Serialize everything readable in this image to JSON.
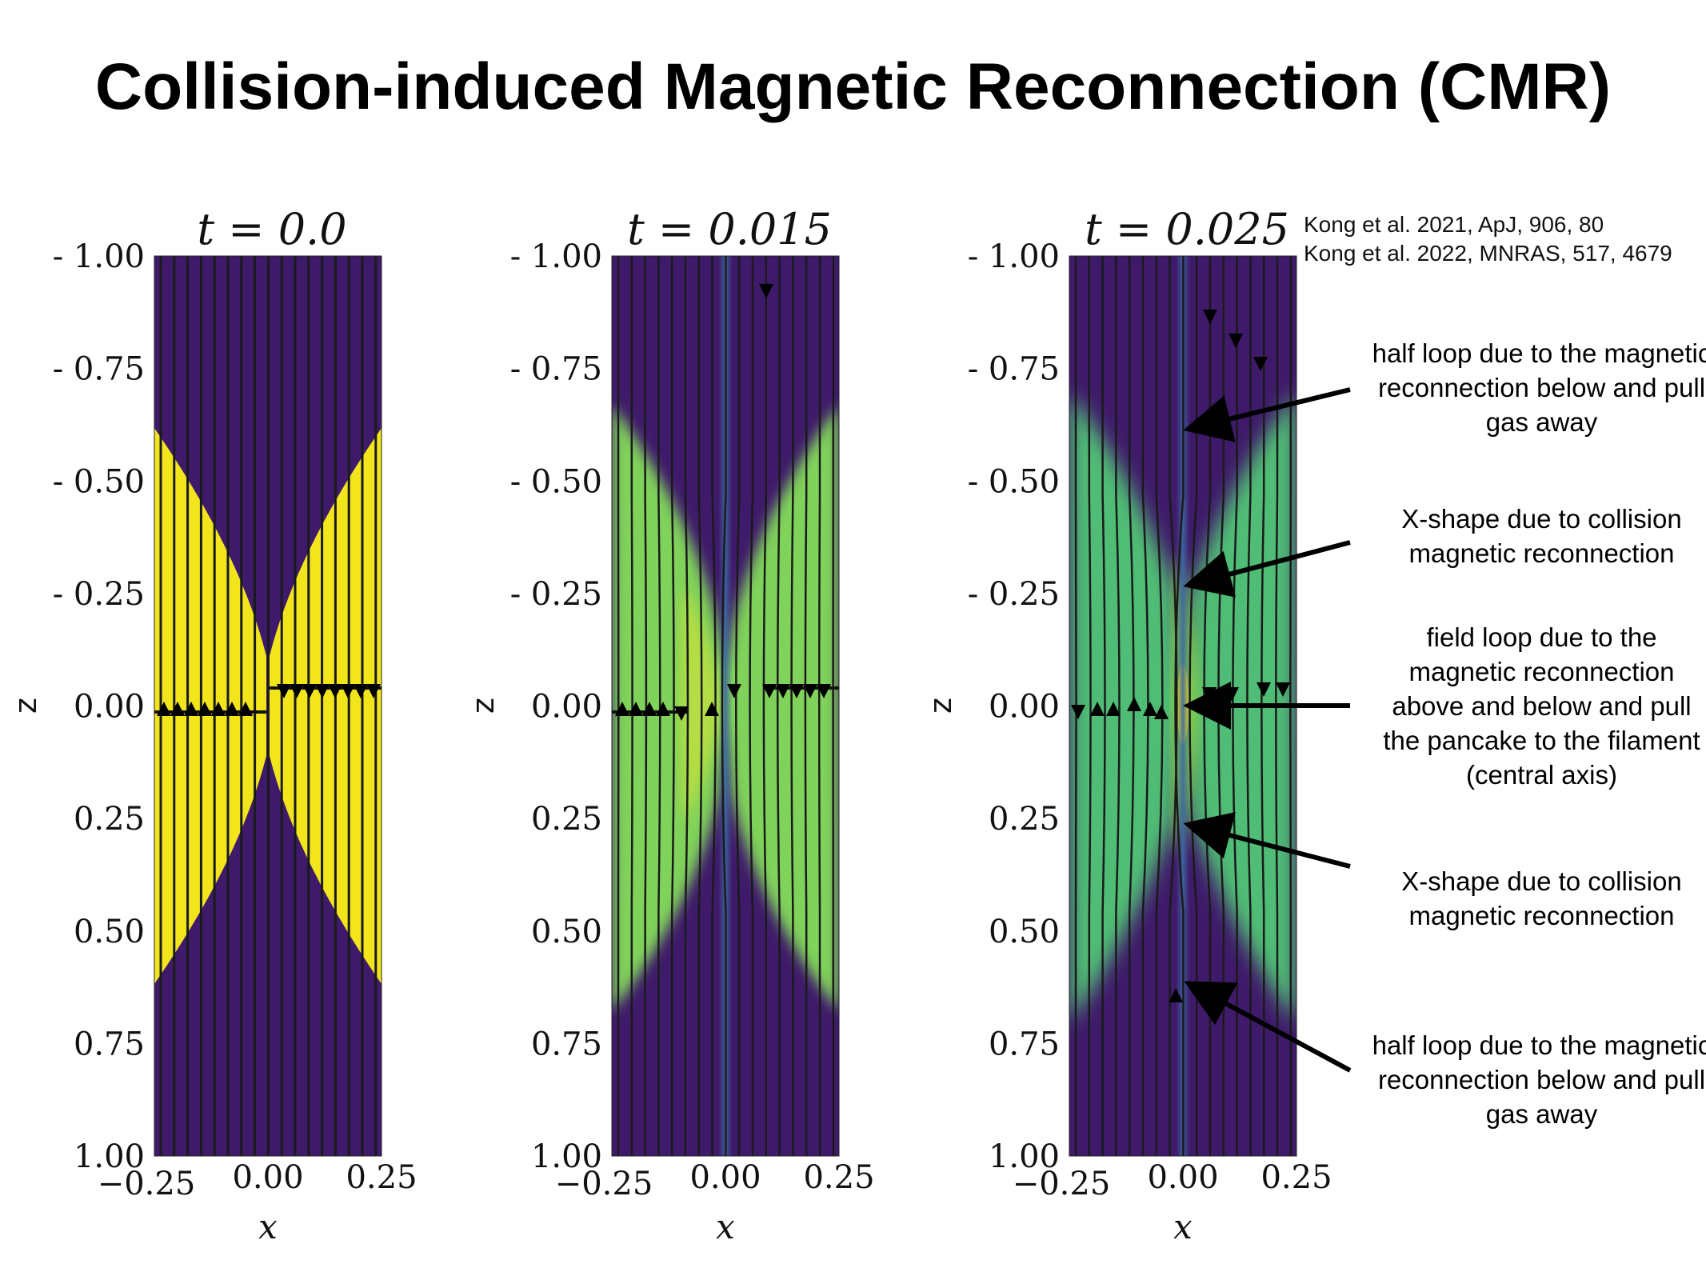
{
  "slide": {
    "title": "Collision-induced Magnetic Reconnection (CMR)",
    "references": [
      "Kong et al. 2021, ApJ, 906, 80",
      "Kong et al. 2022, MNRAS, 517, 4679"
    ]
  },
  "panels": [
    {
      "title": "t = 0.0"
    },
    {
      "title": "t = 0.015"
    },
    {
      "title": "t = 0.025"
    }
  ],
  "axes": {
    "xlabel": "x",
    "ylabel": "z",
    "xticks": [
      "−0.25",
      "0.00",
      "0.25"
    ],
    "yticks": [
      "- 1.00",
      "- 0.75",
      "- 0.50",
      "- 0.25",
      "0.00",
      "0.25",
      "0.50",
      "0.75",
      "1.00"
    ]
  },
  "annotations": [
    {
      "id": "top-half-loop",
      "text": "half loop due to the magnetic reconnection below and pull gas away"
    },
    {
      "id": "upper-x-shape",
      "text": "X-shape due to collision magnetic reconnection"
    },
    {
      "id": "field-loop",
      "text": "field loop due to the magnetic reconnection above and below and pull the pancake to the filament (central axis)"
    },
    {
      "id": "lower-x-shape",
      "text": "X-shape due to collision magnetic reconnection"
    },
    {
      "id": "bottom-half-loop",
      "text": "half loop due to the magnetic reconnection below and pull gas away"
    }
  ],
  "colors": {
    "background": "#3f1a6a",
    "pancake_t0": "#f3e51c",
    "pancake_later": "#7fd25a",
    "pancake_late": "#4fbd74",
    "filament": "#3c5a9a",
    "field_lines": "#1a1a1a"
  }
}
